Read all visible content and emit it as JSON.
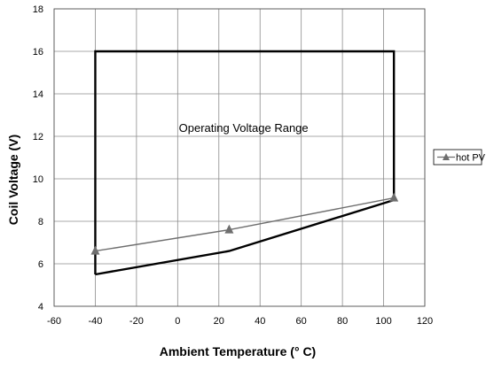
{
  "chart_data": {
    "type": "line",
    "title": "",
    "xlabel": "Ambient Temperature (° C)",
    "ylabel": "Coil Voltage (V)",
    "xlim": [
      -60,
      120
    ],
    "ylim": [
      4,
      18
    ],
    "x_ticks": [
      -60,
      -40,
      -20,
      0,
      20,
      40,
      60,
      80,
      100,
      120
    ],
    "y_ticks": [
      4,
      6,
      8,
      10,
      12,
      14,
      16,
      18
    ],
    "grid": true,
    "legend_position": "right",
    "series": [
      {
        "name": "hot PV",
        "color": "#6e6e6e",
        "marker": "triangle",
        "x": [
          -40,
          25,
          105
        ],
        "y": [
          6.6,
          7.6,
          9.1
        ]
      }
    ],
    "lines": [
      {
        "role": "operating-range-boundary",
        "color": "#000000",
        "x": [
          -40,
          -40,
          105,
          105
        ],
        "y": [
          5.5,
          16,
          16,
          9.0
        ]
      },
      {
        "role": "operating-range-bottom",
        "color": "#000000",
        "x": [
          -40,
          25,
          105
        ],
        "y": [
          5.5,
          6.6,
          9.0
        ]
      }
    ],
    "annotations": [
      {
        "text": "Operating Voltage Range",
        "x": 32,
        "y": 12.2
      }
    ]
  }
}
